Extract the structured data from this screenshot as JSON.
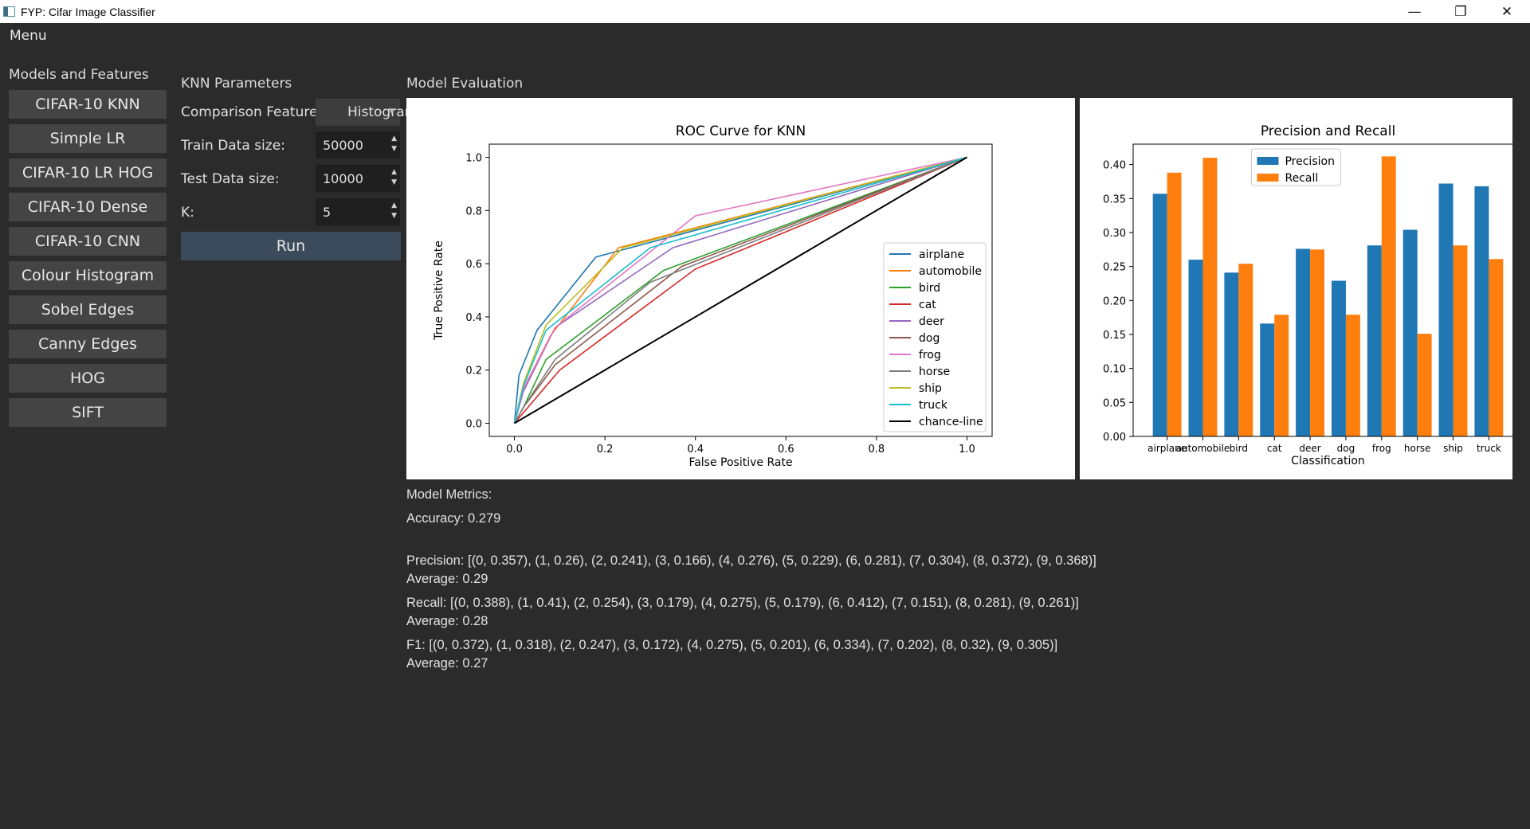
{
  "window": {
    "title": "FYP: Cifar Image Classifier",
    "controls": {
      "minimize": "—",
      "maximize": "❐",
      "close": "✕"
    }
  },
  "menu": {
    "label": "Menu"
  },
  "sidebar": {
    "title": "Models and Features",
    "items": [
      {
        "label": "CIFAR-10 KNN"
      },
      {
        "label": "Simple LR"
      },
      {
        "label": "CIFAR-10 LR HOG"
      },
      {
        "label": "CIFAR-10 Dense"
      },
      {
        "label": "CIFAR-10 CNN"
      },
      {
        "label": "Colour Histogram"
      },
      {
        "label": "Sobel Edges"
      },
      {
        "label": "Canny Edges"
      },
      {
        "label": "HOG"
      },
      {
        "label": "SIFT"
      }
    ]
  },
  "params": {
    "title": "KNN Parameters",
    "comparison_label": "Comparison Feature:",
    "comparison_value": "Histogram",
    "train_label": "Train Data size:",
    "train_value": "50000",
    "test_label": "Test Data size:",
    "test_value": "10000",
    "k_label": "K:",
    "k_value": "5",
    "run_label": "Run"
  },
  "evaluation": {
    "title": "Model Evaluation"
  },
  "metrics": {
    "title": "Model Metrics:",
    "accuracy": "Accuracy: 0.279",
    "precision": "Precision: [(0, 0.357), (1, 0.26), (2, 0.241), (3, 0.166), (4, 0.276), (5, 0.229), (6, 0.281), (7, 0.304), (8, 0.372), (9, 0.368)]",
    "precision_avg": "Average: 0.29",
    "recall": "Recall: [(0, 0.388), (1, 0.41), (2, 0.254), (3, 0.179), (4, 0.275), (5, 0.179), (6, 0.412), (7, 0.151), (8, 0.281), (9, 0.261)]",
    "recall_avg": "Average: 0.28",
    "f1": "F1: [(0, 0.372), (1, 0.318), (2, 0.247), (3, 0.172), (4, 0.275), (5, 0.201), (6, 0.334), (7, 0.202), (8, 0.32), (9, 0.305)]",
    "f1_avg": "Average: 0.27"
  },
  "colors": {
    "airplane": "#1f77b4",
    "automobile": "#ff7f0e",
    "bird": "#2ca02c",
    "cat": "#d62728",
    "deer": "#9467bd",
    "dog": "#8c564b",
    "frog": "#e377c2",
    "horse": "#7f7f7f",
    "ship": "#bcbd22",
    "truck": "#17becf",
    "chance": "#000000"
  },
  "chart_data": [
    {
      "type": "line",
      "title": "ROC Curve for KNN",
      "xlabel": "False Positive Rate",
      "ylabel": "True Positive Rate",
      "xlim": [
        0.0,
        1.0
      ],
      "ylim": [
        0.0,
        1.0
      ],
      "xticks": [
        "0.0",
        "0.2",
        "0.4",
        "0.6",
        "0.8",
        "1.0"
      ],
      "yticks": [
        "0.0",
        "0.2",
        "0.4",
        "0.6",
        "0.8",
        "1.0"
      ],
      "legend_position": "lower-right",
      "series": [
        {
          "name": "airplane",
          "color": "#1f77b4",
          "x": [
            0,
            0.01,
            0.05,
            0.18,
            1.0
          ],
          "y": [
            0,
            0.18,
            0.35,
            0.625,
            1.0
          ]
        },
        {
          "name": "automobile",
          "color": "#ff7f0e",
          "x": [
            0,
            0.02,
            0.08,
            0.23,
            1.0
          ],
          "y": [
            0,
            0.13,
            0.33,
            0.66,
            1.0
          ]
        },
        {
          "name": "bird",
          "color": "#2ca02c",
          "x": [
            0,
            0.02,
            0.07,
            0.33,
            1.0
          ],
          "y": [
            0,
            0.06,
            0.24,
            0.575,
            1.0
          ]
        },
        {
          "name": "cat",
          "color": "#d62728",
          "x": [
            0,
            0.02,
            0.1,
            0.4,
            1.0
          ],
          "y": [
            0,
            0.04,
            0.2,
            0.58,
            1.0
          ]
        },
        {
          "name": "deer",
          "color": "#9467bd",
          "x": [
            0,
            0.02,
            0.09,
            0.35,
            1.0
          ],
          "y": [
            0,
            0.12,
            0.36,
            0.66,
            1.0
          ]
        },
        {
          "name": "dog",
          "color": "#8c564b",
          "x": [
            0,
            0.02,
            0.09,
            0.37,
            1.0
          ],
          "y": [
            0,
            0.06,
            0.22,
            0.59,
            1.0
          ]
        },
        {
          "name": "frog",
          "color": "#e377c2",
          "x": [
            0,
            0.02,
            0.09,
            0.4,
            1.0
          ],
          "y": [
            0,
            0.13,
            0.36,
            0.78,
            1.0
          ]
        },
        {
          "name": "horse",
          "color": "#7f7f7f",
          "x": [
            0,
            0.02,
            0.09,
            0.3,
            1.0
          ],
          "y": [
            0,
            0.06,
            0.24,
            0.53,
            1.0
          ]
        },
        {
          "name": "ship",
          "color": "#bcbd22",
          "x": [
            0,
            0.02,
            0.07,
            0.24,
            1.0
          ],
          "y": [
            0,
            0.15,
            0.37,
            0.66,
            1.0
          ]
        },
        {
          "name": "truck",
          "color": "#17becf",
          "x": [
            0,
            0.02,
            0.07,
            0.3,
            1.0
          ],
          "y": [
            0,
            0.14,
            0.35,
            0.66,
            1.0
          ]
        },
        {
          "name": "chance-line",
          "color": "#000000",
          "x": [
            0,
            1.0
          ],
          "y": [
            0,
            1.0
          ]
        }
      ]
    },
    {
      "type": "bar",
      "title": "Precision and Recall",
      "xlabel": "Classification",
      "ylabel": "",
      "ylim": [
        0.0,
        0.43
      ],
      "yticks": [
        "0.00",
        "0.05",
        "0.10",
        "0.15",
        "0.20",
        "0.25",
        "0.30",
        "0.35",
        "0.40"
      ],
      "legend_position": "top-center",
      "categories": [
        "airplane",
        "automobile",
        "bird",
        "cat",
        "deer",
        "dog",
        "frog",
        "horse",
        "ship",
        "truck"
      ],
      "series": [
        {
          "name": "Precision",
          "color": "#1f77b4",
          "values": [
            0.357,
            0.26,
            0.241,
            0.166,
            0.276,
            0.229,
            0.281,
            0.304,
            0.372,
            0.368
          ]
        },
        {
          "name": "Recall",
          "color": "#ff7f0e",
          "values": [
            0.388,
            0.41,
            0.254,
            0.179,
            0.275,
            0.179,
            0.412,
            0.151,
            0.281,
            0.261
          ]
        }
      ]
    }
  ]
}
